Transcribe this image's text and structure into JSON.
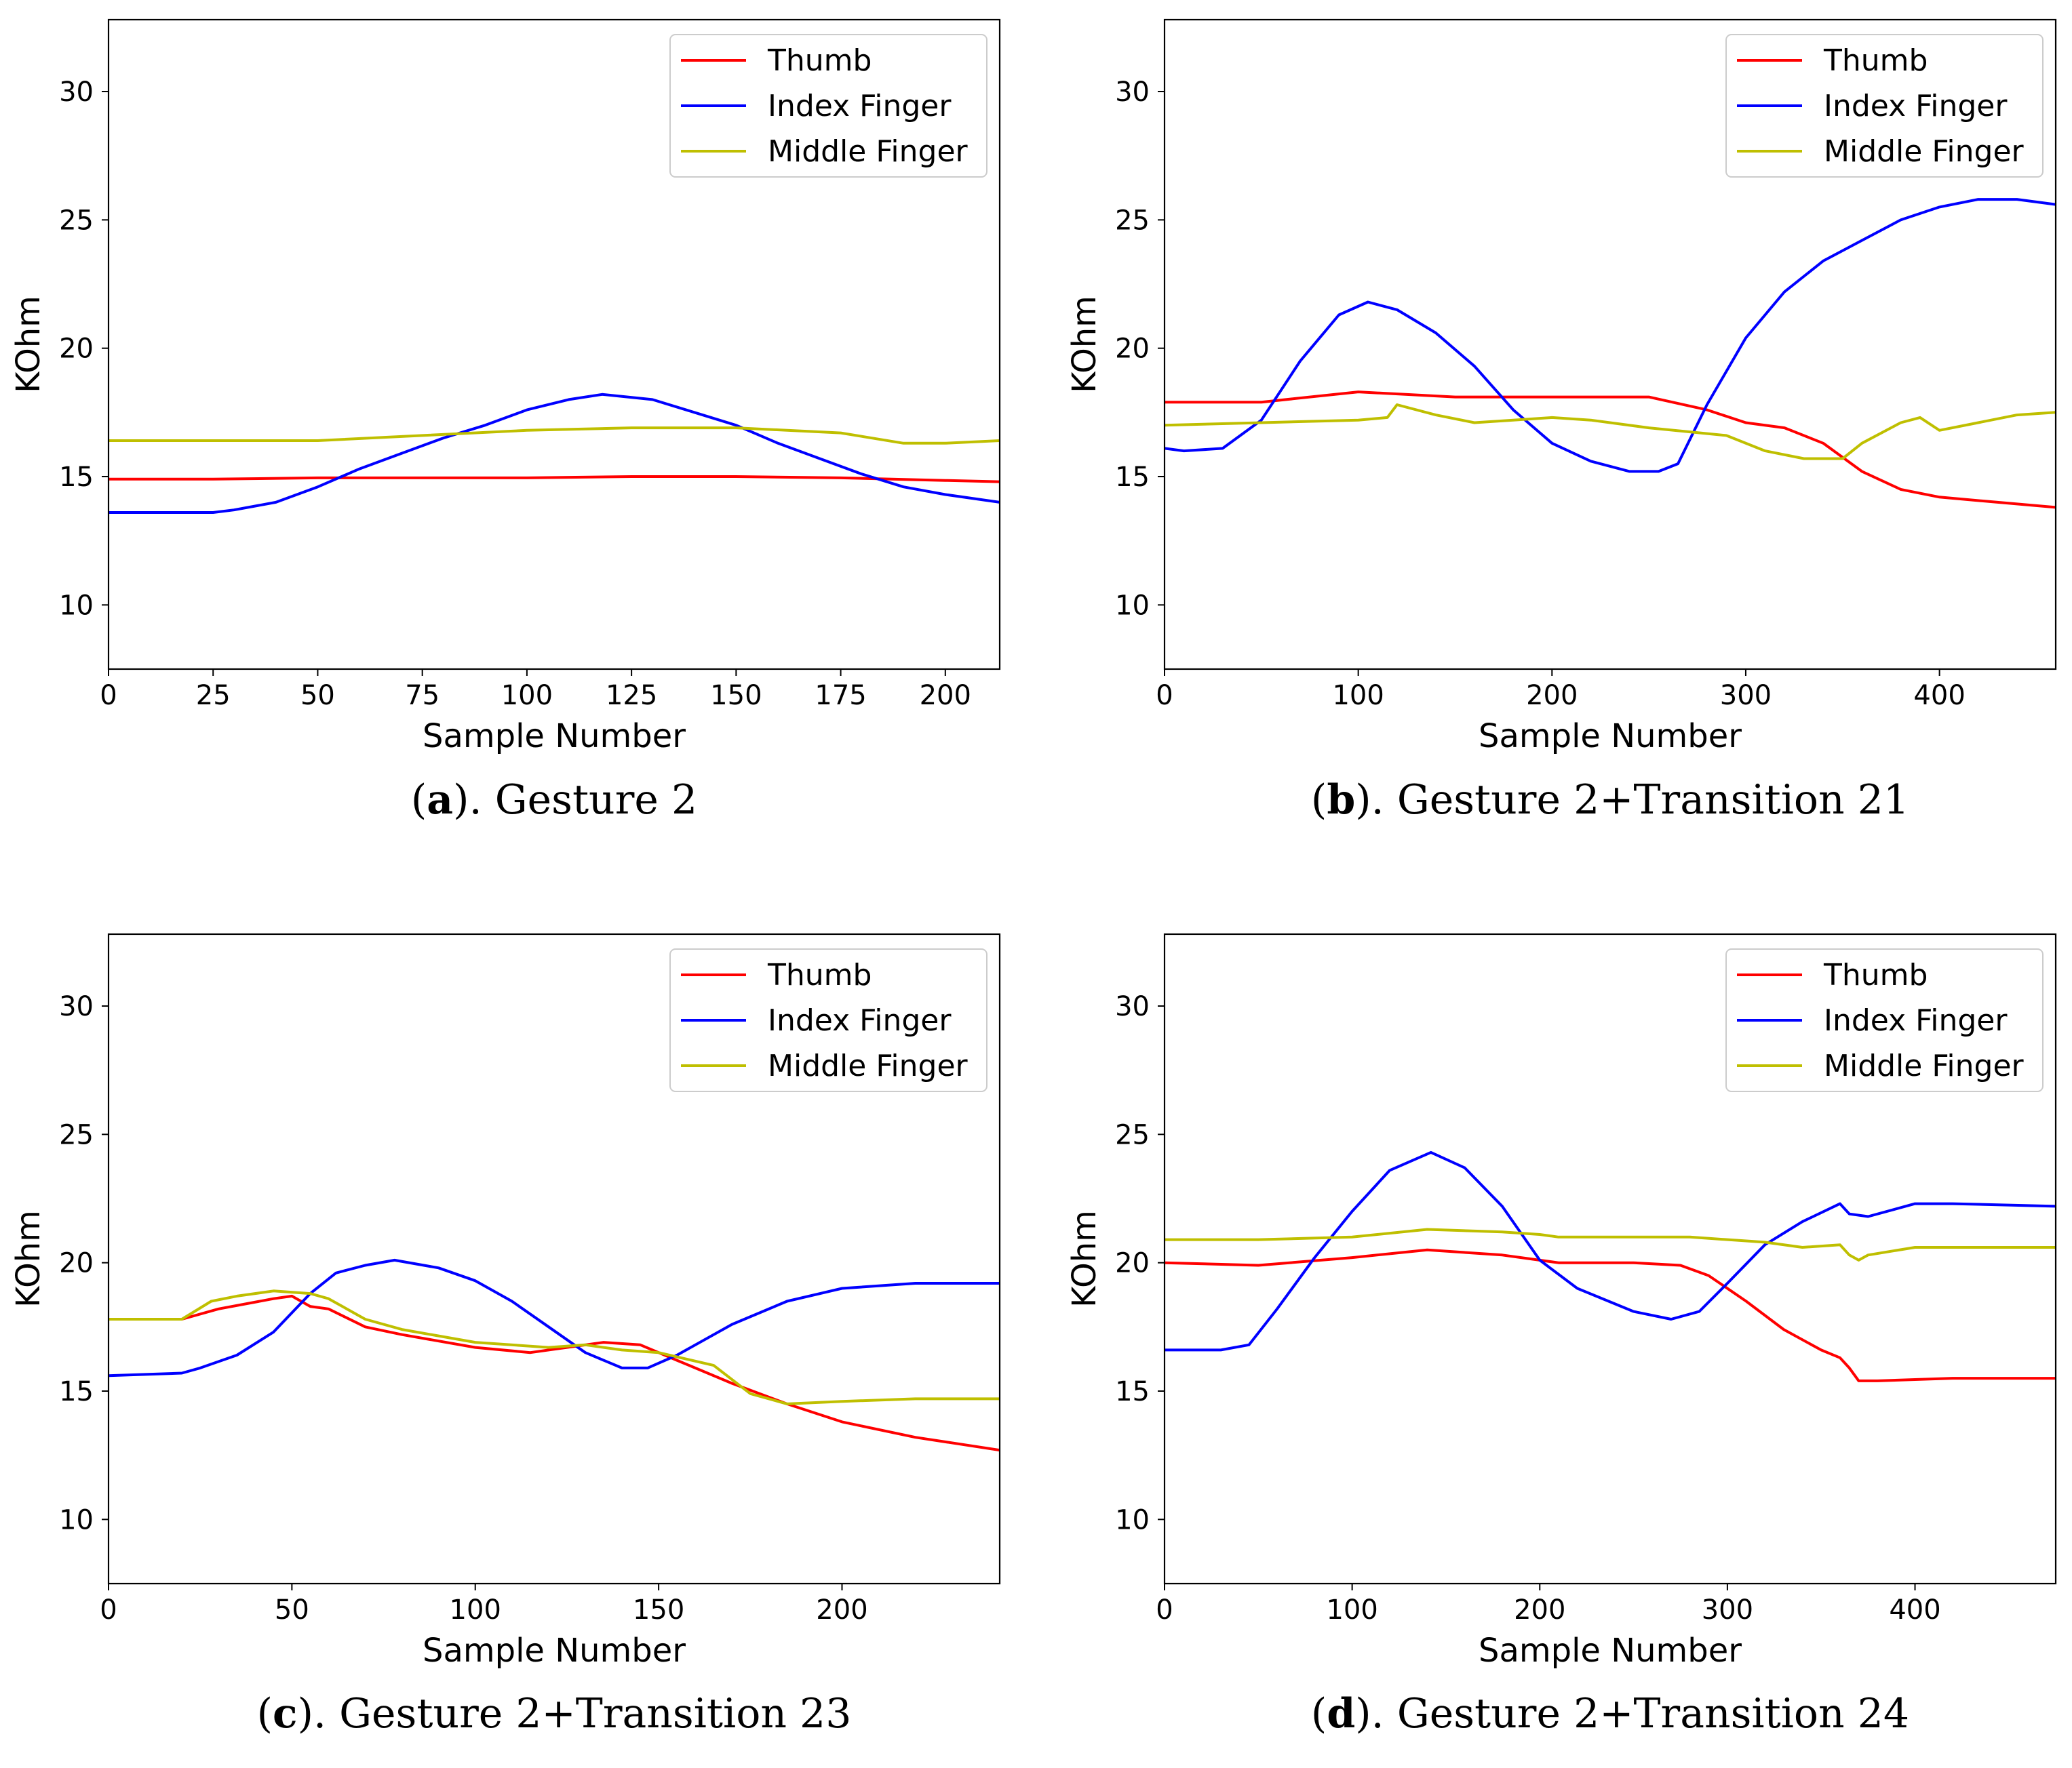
{
  "figure": {
    "legend_entries": [
      {
        "name": "Thumb",
        "color": "#ff0000"
      },
      {
        "name": "Index Finger",
        "color": "#0000ff"
      },
      {
        "name": "Middle Finger",
        "color": "#bfbf00"
      }
    ]
  },
  "chart_data": [
    {
      "type": "line",
      "caption_label": "a",
      "caption_text": "). Gesture 2",
      "caption_open": "(",
      "xlabel": "Sample Number",
      "ylabel": "KOhm",
      "xlim": [
        0,
        213
      ],
      "ylim": [
        7.5,
        32.8
      ],
      "xticks": [
        0,
        25,
        50,
        75,
        100,
        125,
        150,
        175,
        200
      ],
      "yticks": [
        10,
        15,
        20,
        25,
        30
      ],
      "legend_position": "upper right",
      "series": [
        {
          "name": "Thumb",
          "color": "#ff0000",
          "x": [
            0,
            25,
            50,
            75,
            100,
            125,
            150,
            175,
            200,
            213
          ],
          "values": [
            14.9,
            14.9,
            14.95,
            14.95,
            14.95,
            15.0,
            15.0,
            14.95,
            14.85,
            14.8
          ]
        },
        {
          "name": "Index Finger",
          "color": "#0000ff",
          "x": [
            0,
            5,
            15,
            25,
            30,
            40,
            50,
            60,
            70,
            80,
            90,
            100,
            110,
            118,
            130,
            140,
            150,
            160,
            170,
            180,
            190,
            200,
            213
          ],
          "values": [
            13.6,
            13.6,
            13.6,
            13.6,
            13.7,
            14.0,
            14.6,
            15.3,
            15.9,
            16.5,
            17.0,
            17.6,
            18.0,
            18.2,
            18.0,
            17.5,
            17.0,
            16.3,
            15.7,
            15.1,
            14.6,
            14.3,
            14.0
          ]
        },
        {
          "name": "Middle Finger",
          "color": "#bfbf00",
          "x": [
            0,
            25,
            50,
            75,
            100,
            125,
            150,
            175,
            190,
            200,
            213
          ],
          "values": [
            16.4,
            16.4,
            16.4,
            16.6,
            16.8,
            16.9,
            16.9,
            16.7,
            16.3,
            16.3,
            16.4
          ]
        }
      ]
    },
    {
      "type": "line",
      "caption_label": "b",
      "caption_text": "). Gesture 2+Transition 21",
      "caption_open": "(",
      "xlabel": "Sample Number",
      "ylabel": "KOhm",
      "xlim": [
        0,
        460
      ],
      "ylim": [
        7.5,
        32.8
      ],
      "xticks": [
        0,
        100,
        200,
        300,
        400
      ],
      "yticks": [
        10,
        15,
        20,
        25,
        30
      ],
      "legend_position": "upper right",
      "series": [
        {
          "name": "Thumb",
          "color": "#ff0000",
          "x": [
            0,
            50,
            100,
            150,
            200,
            250,
            280,
            300,
            320,
            340,
            360,
            380,
            400,
            430,
            460
          ],
          "values": [
            17.9,
            17.9,
            18.3,
            18.1,
            18.1,
            18.1,
            17.6,
            17.1,
            16.9,
            16.3,
            15.2,
            14.5,
            14.2,
            14.0,
            13.8
          ]
        },
        {
          "name": "Index Finger",
          "color": "#0000ff",
          "x": [
            0,
            10,
            30,
            50,
            70,
            90,
            105,
            120,
            140,
            160,
            180,
            200,
            220,
            240,
            255,
            265,
            280,
            300,
            320,
            340,
            360,
            380,
            400,
            420,
            440,
            460
          ],
          "values": [
            16.1,
            16.0,
            16.1,
            17.2,
            19.5,
            21.3,
            21.8,
            21.5,
            20.6,
            19.3,
            17.6,
            16.3,
            15.6,
            15.2,
            15.2,
            15.5,
            17.8,
            20.4,
            22.2,
            23.4,
            24.2,
            25.0,
            25.5,
            25.8,
            25.8,
            25.6
          ]
        },
        {
          "name": "Middle Finger",
          "color": "#bfbf00",
          "x": [
            0,
            50,
            100,
            115,
            120,
            140,
            160,
            180,
            200,
            220,
            250,
            290,
            310,
            330,
            350,
            360,
            380,
            390,
            400,
            420,
            440,
            460
          ],
          "values": [
            17.0,
            17.1,
            17.2,
            17.3,
            17.8,
            17.4,
            17.1,
            17.2,
            17.3,
            17.2,
            16.9,
            16.6,
            16.0,
            15.7,
            15.7,
            16.3,
            17.1,
            17.3,
            16.8,
            17.1,
            17.4,
            17.5
          ]
        }
      ]
    },
    {
      "type": "line",
      "caption_label": "c",
      "caption_text": "). Gesture 2+Transition 23",
      "caption_open": "(",
      "xlabel": "Sample Number",
      "ylabel": "KOhm",
      "xlim": [
        0,
        243
      ],
      "ylim": [
        7.5,
        32.8
      ],
      "xticks": [
        0,
        50,
        100,
        150,
        200
      ],
      "yticks": [
        10,
        15,
        20,
        25,
        30
      ],
      "legend_position": "upper right",
      "series": [
        {
          "name": "Thumb",
          "color": "#ff0000",
          "x": [
            0,
            20,
            30,
            45,
            50,
            55,
            60,
            70,
            80,
            100,
            115,
            125,
            135,
            145,
            155,
            170,
            185,
            200,
            220,
            243
          ],
          "values": [
            17.8,
            17.8,
            18.2,
            18.6,
            18.7,
            18.3,
            18.2,
            17.5,
            17.2,
            16.7,
            16.5,
            16.7,
            16.9,
            16.8,
            16.2,
            15.3,
            14.5,
            13.8,
            13.2,
            12.7
          ]
        },
        {
          "name": "Index Finger",
          "color": "#0000ff",
          "x": [
            0,
            20,
            25,
            35,
            45,
            55,
            62,
            70,
            78,
            90,
            100,
            110,
            120,
            130,
            140,
            147,
            155,
            170,
            185,
            200,
            220,
            243
          ],
          "values": [
            15.6,
            15.7,
            15.9,
            16.4,
            17.3,
            18.8,
            19.6,
            19.9,
            20.1,
            19.8,
            19.3,
            18.5,
            17.5,
            16.5,
            15.9,
            15.9,
            16.4,
            17.6,
            18.5,
            19.0,
            19.2,
            19.2
          ]
        },
        {
          "name": "Middle Finger",
          "color": "#bfbf00",
          "x": [
            0,
            20,
            28,
            35,
            45,
            55,
            60,
            70,
            80,
            100,
            120,
            130,
            140,
            150,
            165,
            175,
            185,
            200,
            220,
            243
          ],
          "values": [
            17.8,
            17.8,
            18.5,
            18.7,
            18.9,
            18.8,
            18.6,
            17.8,
            17.4,
            16.9,
            16.7,
            16.8,
            16.6,
            16.5,
            16.0,
            14.9,
            14.5,
            14.6,
            14.7,
            14.7
          ]
        }
      ]
    },
    {
      "type": "line",
      "caption_label": "d",
      "caption_text": "). Gesture 2+Transition 24",
      "caption_open": "(",
      "xlabel": "Sample Number",
      "ylabel": "KOhm",
      "xlim": [
        0,
        475
      ],
      "ylim": [
        7.5,
        32.8
      ],
      "xticks": [
        0,
        100,
        200,
        300,
        400
      ],
      "yticks": [
        10,
        15,
        20,
        25,
        30
      ],
      "legend_position": "upper right",
      "series": [
        {
          "name": "Thumb",
          "color": "#ff0000",
          "x": [
            0,
            50,
            100,
            140,
            180,
            210,
            250,
            275,
            290,
            310,
            330,
            350,
            360,
            365,
            370,
            380,
            420,
            475
          ],
          "values": [
            20.0,
            19.9,
            20.2,
            20.5,
            20.3,
            20.0,
            20.0,
            19.9,
            19.5,
            18.5,
            17.4,
            16.6,
            16.3,
            15.9,
            15.4,
            15.4,
            15.5,
            15.5
          ]
        },
        {
          "name": "Index Finger",
          "color": "#0000ff",
          "x": [
            0,
            30,
            45,
            60,
            80,
            100,
            120,
            142,
            160,
            180,
            200,
            220,
            250,
            270,
            285,
            300,
            320,
            340,
            360,
            365,
            375,
            400,
            420,
            475
          ],
          "values": [
            16.6,
            16.6,
            16.8,
            18.2,
            20.2,
            22.0,
            23.6,
            24.3,
            23.7,
            22.2,
            20.1,
            19.0,
            18.1,
            17.8,
            18.1,
            19.2,
            20.7,
            21.6,
            22.3,
            21.9,
            21.8,
            22.3,
            22.3,
            22.2
          ]
        },
        {
          "name": "Middle Finger",
          "color": "#bfbf00",
          "x": [
            0,
            50,
            100,
            140,
            180,
            200,
            210,
            250,
            280,
            320,
            340,
            360,
            365,
            370,
            375,
            400,
            475
          ],
          "values": [
            20.9,
            20.9,
            21.0,
            21.3,
            21.2,
            21.1,
            21.0,
            21.0,
            21.0,
            20.8,
            20.6,
            20.7,
            20.3,
            20.1,
            20.3,
            20.6,
            20.6
          ]
        }
      ]
    }
  ]
}
